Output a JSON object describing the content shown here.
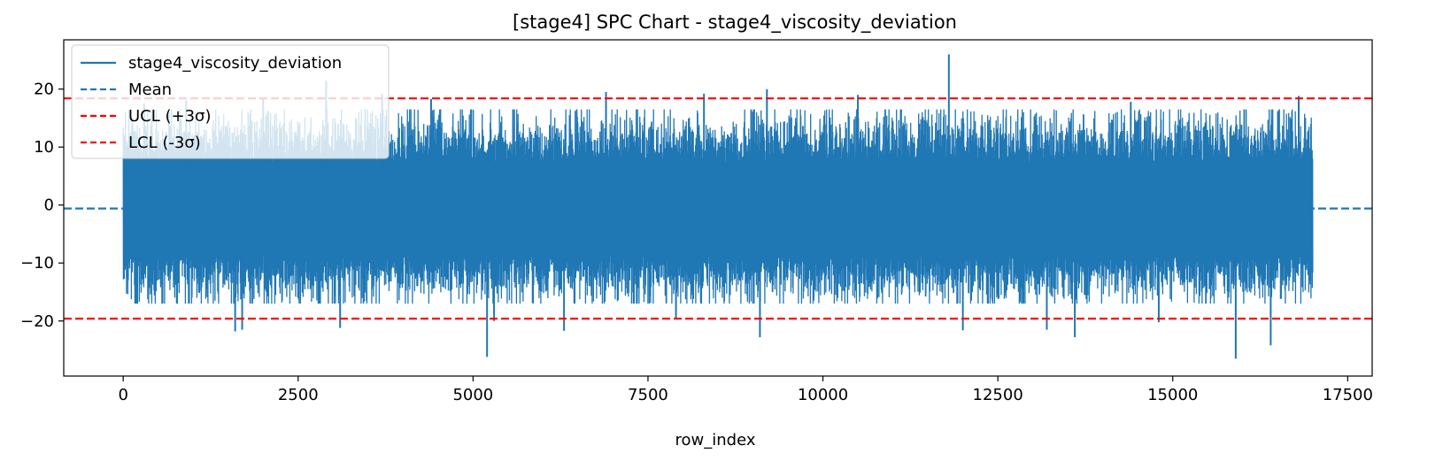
{
  "chart_data": {
    "type": "line",
    "title": "[stage4] SPC Chart - stage4_viscosity_deviation",
    "xlabel": "row_index",
    "ylabel": "",
    "xlim": [
      -850,
      17850
    ],
    "ylim": [
      -29.5,
      28.5
    ],
    "x_ticks": [
      0,
      2500,
      5000,
      7500,
      10000,
      12500,
      15000,
      17500
    ],
    "x_tick_labels": [
      "0",
      "2500",
      "5000",
      "7500",
      "10000",
      "12500",
      "15000",
      "17500"
    ],
    "y_ticks": [
      -20,
      -10,
      0,
      10,
      20
    ],
    "y_tick_labels": [
      "−20",
      "−10",
      "0",
      "10",
      "20"
    ],
    "grid": false,
    "legend_position": "upper-left",
    "colors": {
      "series": "#1f77b4",
      "mean": "#1f77b4",
      "ucl": "#ff0000",
      "lcl": "#ff0000"
    },
    "series": [
      {
        "name": "stage4_viscosity_deviation",
        "x_range": [
          0,
          17000
        ],
        "points": 17000,
        "notes_visible_extremes": {
          "max": 26,
          "min": -26.5
        },
        "typical_band": [
          -13,
          13
        ],
        "spikes": [
          [
            300,
            17.5
          ],
          [
            900,
            18
          ],
          [
            1600,
            -21.8
          ],
          [
            1700,
            -21.5
          ],
          [
            2000,
            18.5
          ],
          [
            2900,
            21.5
          ],
          [
            3100,
            -21.2
          ],
          [
            3700,
            19.2
          ],
          [
            4400,
            18.3
          ],
          [
            5200,
            -26.2
          ],
          [
            5300,
            -20
          ],
          [
            6300,
            -21.7
          ],
          [
            6900,
            19.5
          ],
          [
            7900,
            -19.5
          ],
          [
            8300,
            19.2
          ],
          [
            9100,
            -22.8
          ],
          [
            9200,
            20
          ],
          [
            10500,
            19
          ],
          [
            11800,
            26
          ],
          [
            12000,
            -21.6
          ],
          [
            13200,
            -21.5
          ],
          [
            13600,
            -22.8
          ],
          [
            14400,
            17.8
          ],
          [
            14800,
            -20.2
          ],
          [
            15900,
            -26.5
          ],
          [
            16400,
            -24.2
          ],
          [
            16800,
            18.8
          ]
        ]
      },
      {
        "name": "Mean",
        "value": -0.6,
        "style": "dashed"
      },
      {
        "name": "UCL (+3σ)",
        "value": 18.4,
        "style": "dashed"
      },
      {
        "name": "LCL (-3σ)",
        "value": -19.6,
        "style": "dashed"
      }
    ]
  }
}
